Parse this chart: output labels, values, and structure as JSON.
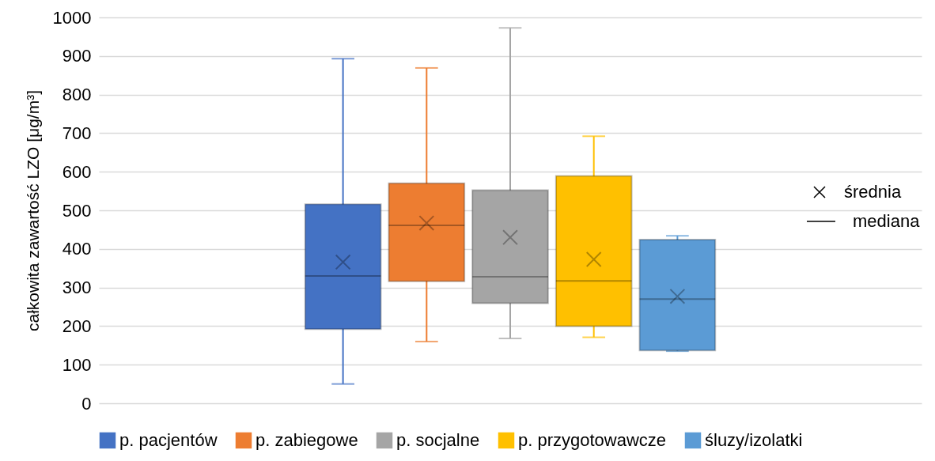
{
  "chart_data": {
    "type": "box",
    "ylabel": "całkowita zawartość LZO [μg/m³]",
    "categories": [
      null
    ],
    "series": [
      {
        "name": "p. pacjentów",
        "color": "#4472c4",
        "boxes": [
          {
            "low": 50,
            "q1": 192,
            "median": 330,
            "q3": 516,
            "high": 893,
            "mean": 366
          }
        ]
      },
      {
        "name": "p. zabiegowe",
        "color": "#ed7d31",
        "boxes": [
          {
            "low": 160,
            "q1": 316,
            "median": 461,
            "q3": 570,
            "high": 869,
            "mean": 467
          }
        ]
      },
      {
        "name": "p. socjalne",
        "color": "#a5a5a5",
        "boxes": [
          {
            "low": 168,
            "q1": 259,
            "median": 328,
            "q3": 552,
            "high": 973,
            "mean": 430
          }
        ]
      },
      {
        "name": "p. przygotowawcze",
        "color": "#ffc000",
        "boxes": [
          {
            "low": 171,
            "q1": 200,
            "median": 317,
            "q3": 589,
            "high": 692,
            "mean": 373
          }
        ]
      },
      {
        "name": "śluzy/izolatki",
        "color": "#5b9bd5",
        "boxes": [
          {
            "low": 135,
            "q1": 137,
            "median": 270,
            "q3": 424,
            "high": 434,
            "mean": 277
          }
        ]
      }
    ],
    "ylim": [
      0,
      1000
    ],
    "yticks": [
      0,
      100,
      200,
      300,
      400,
      500,
      600,
      700,
      800,
      900,
      1000
    ],
    "grid": "y",
    "legend": "bottom",
    "marker": "cross",
    "annotations": [
      "średnia",
      "mediana"
    ]
  }
}
